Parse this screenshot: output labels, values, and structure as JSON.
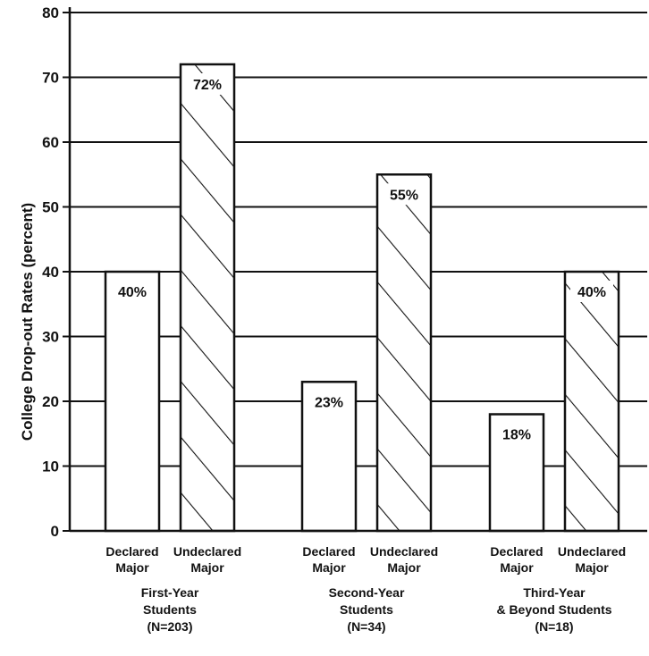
{
  "chart_data": {
    "type": "bar",
    "ylabel": "College Drop-out Rates (percent)",
    "ylim": [
      0,
      80
    ],
    "yticks": [
      0,
      10,
      20,
      30,
      40,
      50,
      60,
      70,
      80
    ],
    "grid": true,
    "groups": [
      {
        "label_lines": [
          "First-Year",
          "Students",
          "(N=203)"
        ],
        "bars": [
          {
            "category_lines": [
              "Declared",
              "Major"
            ],
            "value": 40,
            "label": "40%",
            "hatched": false
          },
          {
            "category_lines": [
              "Undeclared",
              "Major"
            ],
            "value": 72,
            "label": "72%",
            "hatched": true
          }
        ]
      },
      {
        "label_lines": [
          "Second-Year",
          "Students",
          "(N=34)"
        ],
        "bars": [
          {
            "category_lines": [
              "Declared",
              "Major"
            ],
            "value": 23,
            "label": "23%",
            "hatched": false
          },
          {
            "category_lines": [
              "Undeclared",
              "Major"
            ],
            "value": 55,
            "label": "55%",
            "hatched": true
          }
        ]
      },
      {
        "label_lines": [
          "Third-Year",
          "& Beyond Students",
          "(N=18)"
        ],
        "bars": [
          {
            "category_lines": [
              "Declared",
              "Major"
            ],
            "value": 18,
            "label": "18%",
            "hatched": false
          },
          {
            "category_lines": [
              "Undeclared",
              "Major"
            ],
            "value": 40,
            "label": "40%",
            "hatched": true
          }
        ]
      }
    ]
  }
}
